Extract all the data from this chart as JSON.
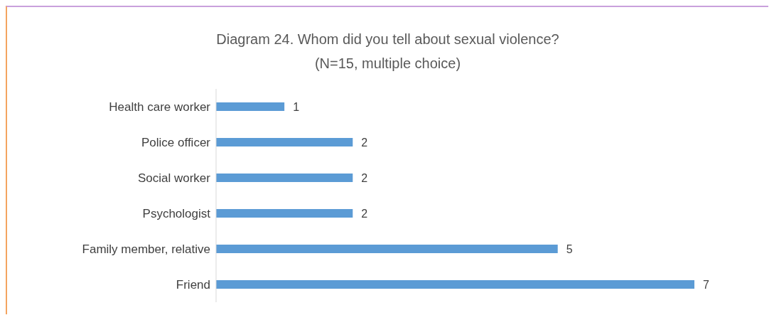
{
  "chart_data": {
    "type": "bar",
    "orientation": "horizontal",
    "title": "Diagram 24. Whom did you tell about sexual violence?",
    "subtitle": "(N=15, multiple choice)",
    "categories": [
      "Health care worker",
      "Police officer",
      "Social worker",
      "Psychologist",
      "Family member, relative",
      "Friend"
    ],
    "values": [
      1,
      2,
      2,
      2,
      5,
      7
    ],
    "color": "#5b9bd5",
    "data_labels": true
  }
}
